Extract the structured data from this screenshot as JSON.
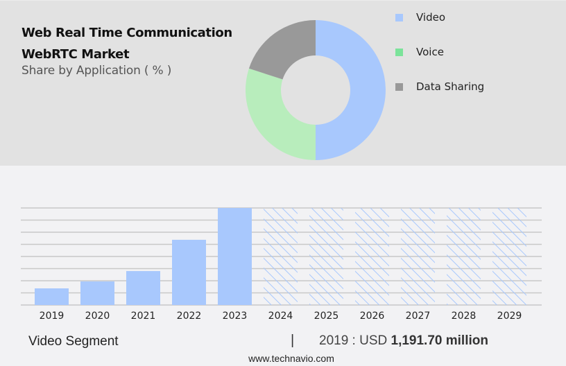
{
  "header": {
    "title_line1": "Web Real Time Communication",
    "title_line2": "WebRTC Market",
    "subtitle": "Share by Application ( % )"
  },
  "legend": {
    "items": [
      {
        "label": "Video",
        "color": "#a8c8fd"
      },
      {
        "label": "Voice",
        "color": "#7be39a"
      },
      {
        "label": "Data Sharing",
        "color": "#999999"
      }
    ]
  },
  "footer": {
    "segment": "Video Segment",
    "separator": "|",
    "year_prefix": "2019 : USD",
    "value": "1,191.70 million",
    "url": "www.technavio.com"
  },
  "chart_data": [
    {
      "type": "pie",
      "title": "Web Real Time Communication WebRTC Market",
      "subtitle": "Share by Application ( % )",
      "style": "donut",
      "categories": [
        "Video",
        "Voice",
        "Data Sharing"
      ],
      "values": [
        50,
        30,
        20
      ],
      "colors": [
        "#a8c8fd",
        "#b8edbc",
        "#999999"
      ],
      "legend_position": "right"
    },
    {
      "type": "bar",
      "title": "Video Segment",
      "categories": [
        "2019",
        "2020",
        "2021",
        "2022",
        "2023",
        "2024",
        "2025",
        "2026",
        "2027",
        "2028",
        "2029"
      ],
      "values": [
        1191.7,
        1690,
        2430,
        4670,
        6950,
        null,
        null,
        null,
        null,
        null,
        null
      ],
      "forecast": [
        false,
        false,
        false,
        false,
        false,
        true,
        true,
        true,
        true,
        true,
        true
      ],
      "forecast_display_height": 6950,
      "xlabel": "",
      "ylabel": "",
      "ylim": [
        0,
        6950
      ],
      "grid": true,
      "bar_color": "#a8c8fd",
      "annotation": "2019 : USD 1,191.70 million"
    }
  ]
}
